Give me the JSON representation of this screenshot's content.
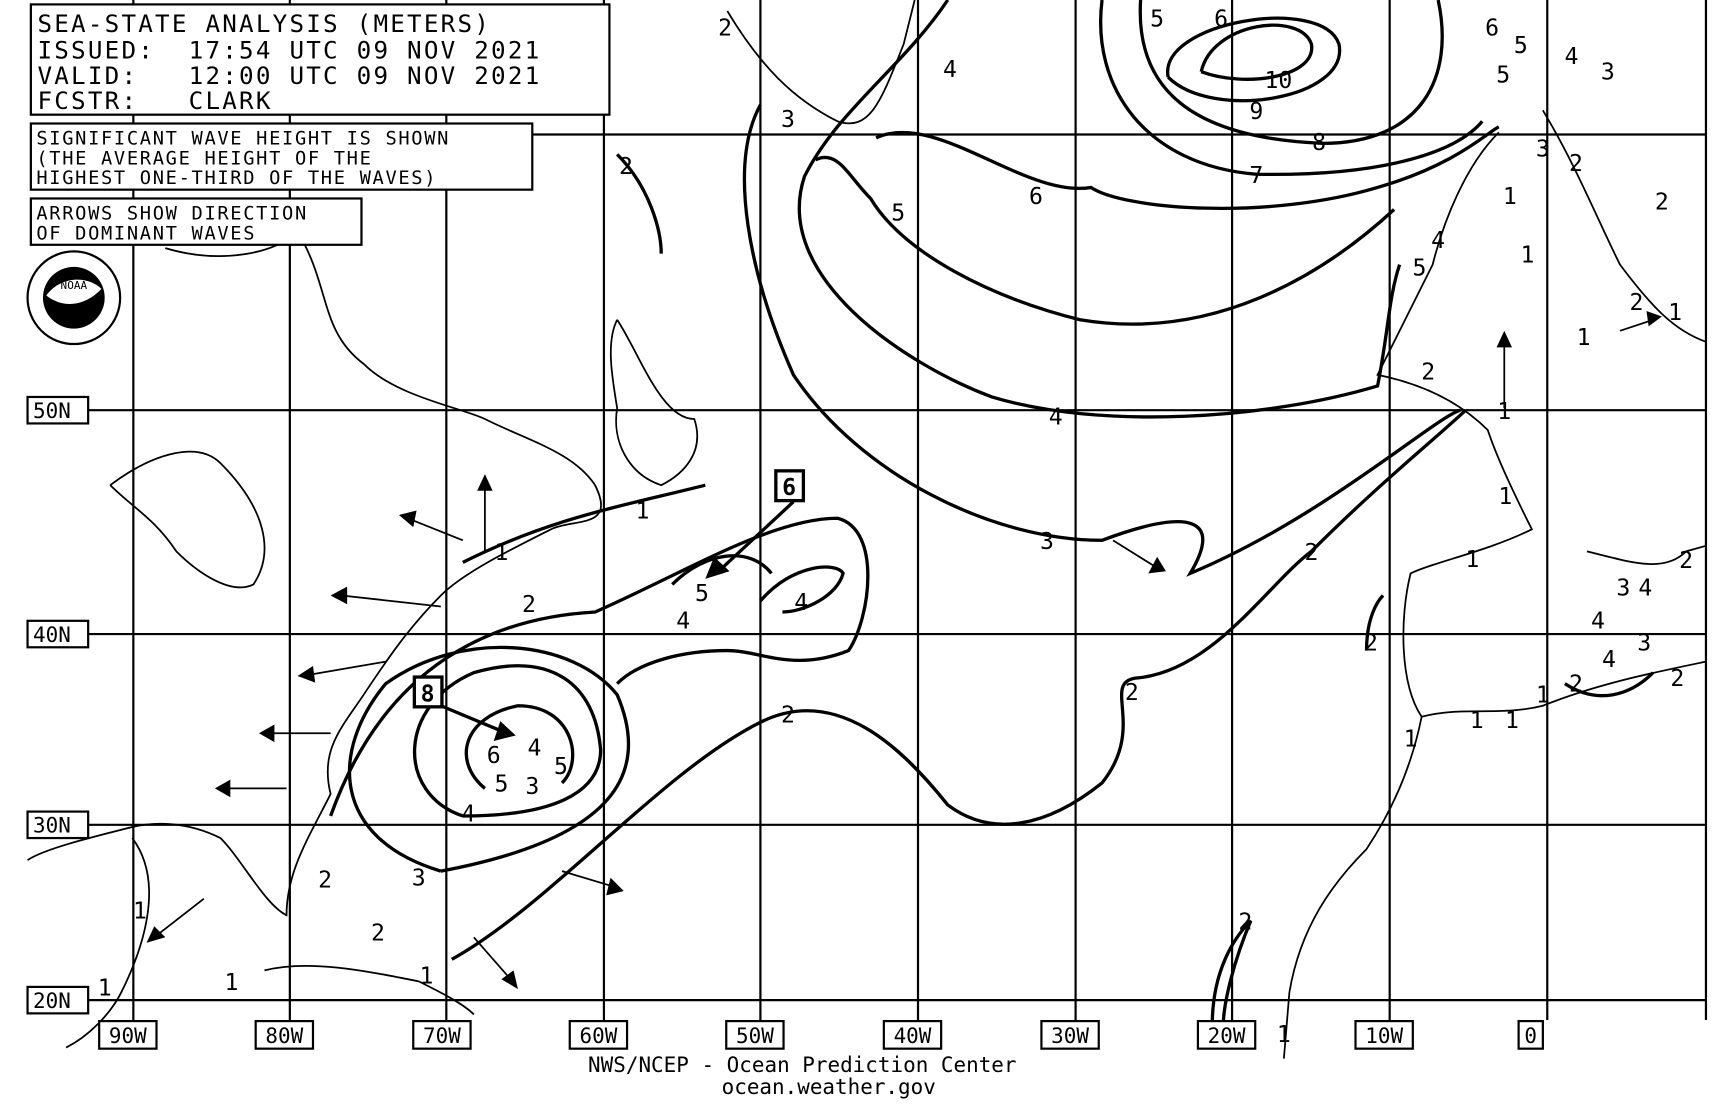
{
  "header": {
    "title": "SEA-STATE ANALYSIS (METERS)",
    "issued": "ISSUED:  17:54 UTC 09 NOV 2021",
    "valid": "VALID:   12:00 UTC 09 NOV 2021",
    "forecaster": "FCSTR:   CLARK"
  },
  "notes": {
    "wave_height": [
      "SIGNIFICANT WAVE HEIGHT IS SHOWN",
      "(THE AVERAGE HEIGHT OF THE",
      "HIGHEST ONE-THIRD OF THE WAVES)"
    ],
    "arrows": [
      "ARROWS SHOW DIRECTION",
      "OF DOMINANT WAVES"
    ]
  },
  "logo": {
    "text": "NOAA",
    "icon": "noaa-logo"
  },
  "latitude_labels": [
    "50N",
    "40N",
    "30N",
    "20N"
  ],
  "longitude_labels": [
    "90W",
    "80W",
    "70W",
    "60W",
    "50W",
    "40W",
    "30W",
    "20W",
    "10W",
    "0"
  ],
  "maxima": [
    "8",
    "6"
  ],
  "contour_labels": [
    "10",
    "9",
    "8",
    "7",
    "6",
    "5",
    "4",
    "3",
    "2",
    "2",
    "1",
    "1",
    "2",
    "3",
    "4",
    "5",
    "6",
    "4",
    "5",
    "3",
    "5",
    "4",
    "4",
    "5",
    "4",
    "2",
    "2",
    "3",
    "2",
    "2",
    "1",
    "1",
    "2",
    "1",
    "1",
    "1",
    "2",
    "5",
    "6",
    "4",
    "5",
    "4",
    "3",
    "2",
    "6",
    "5",
    "3",
    "2",
    "1",
    "1",
    "1",
    "2",
    "3",
    "4",
    "4",
    "3",
    "4",
    "2",
    "2",
    "1",
    "1",
    "1",
    "1",
    "2",
    "2",
    "1",
    "1",
    "1",
    "1",
    "2"
  ],
  "footer": {
    "line1": "NWS/NCEP - Ocean Prediction Center",
    "line2": "ocean.weather.gov"
  }
}
